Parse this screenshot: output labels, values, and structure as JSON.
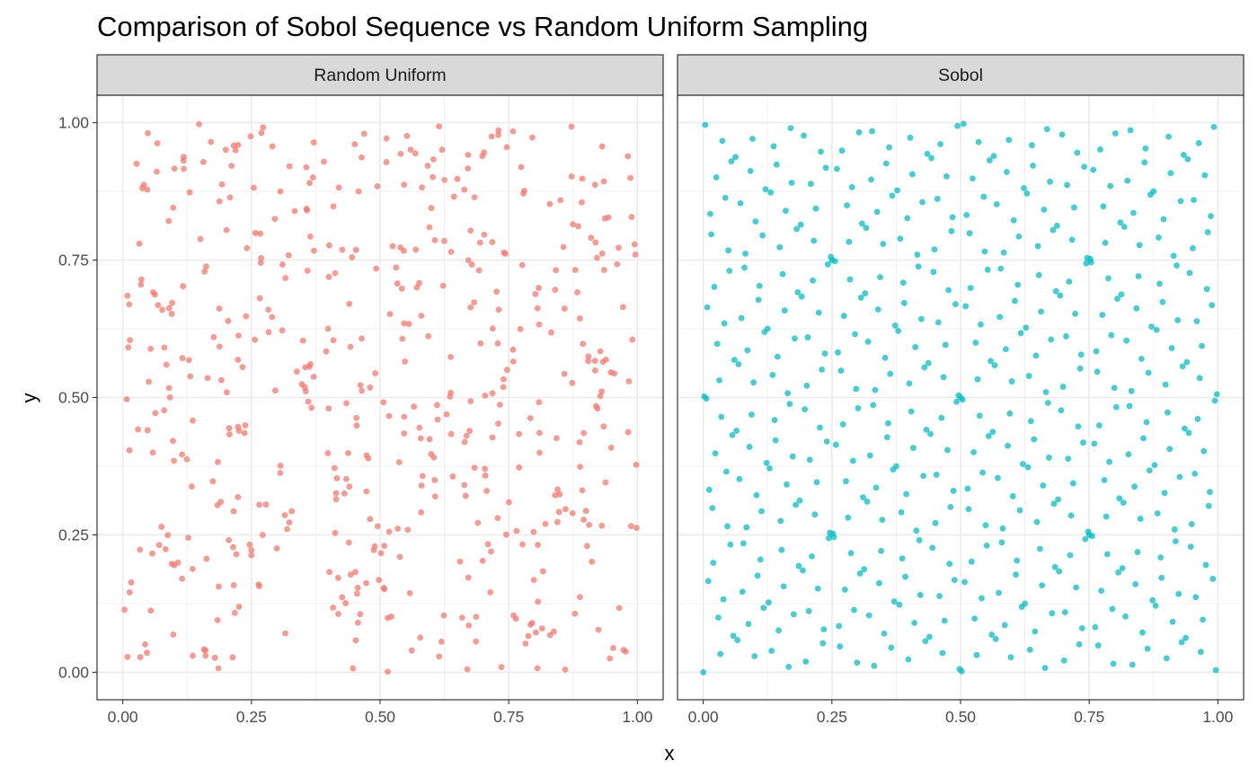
{
  "chart_data": {
    "type": "scatter",
    "title": "Comparison of Sobol Sequence vs Random Uniform Sampling",
    "xlabel": "x",
    "ylabel": "y",
    "xlim": [
      0,
      1
    ],
    "ylim": [
      0,
      1
    ],
    "x_ticks": [
      "0.00",
      "0.25",
      "0.50",
      "0.75",
      "1.00"
    ],
    "y_ticks": [
      "0.00",
      "0.25",
      "0.50",
      "0.75",
      "1.00"
    ],
    "grid": true,
    "legend": "none",
    "point_count_per_panel": 512,
    "facets": [
      {
        "name": "Random Uniform",
        "color": "#F8766D",
        "sampling": "random_uniform",
        "seed": 20240517,
        "points": []
      },
      {
        "name": "Sobol",
        "color": "#00BFC4",
        "sampling": "sobol",
        "points": []
      }
    ]
  }
}
